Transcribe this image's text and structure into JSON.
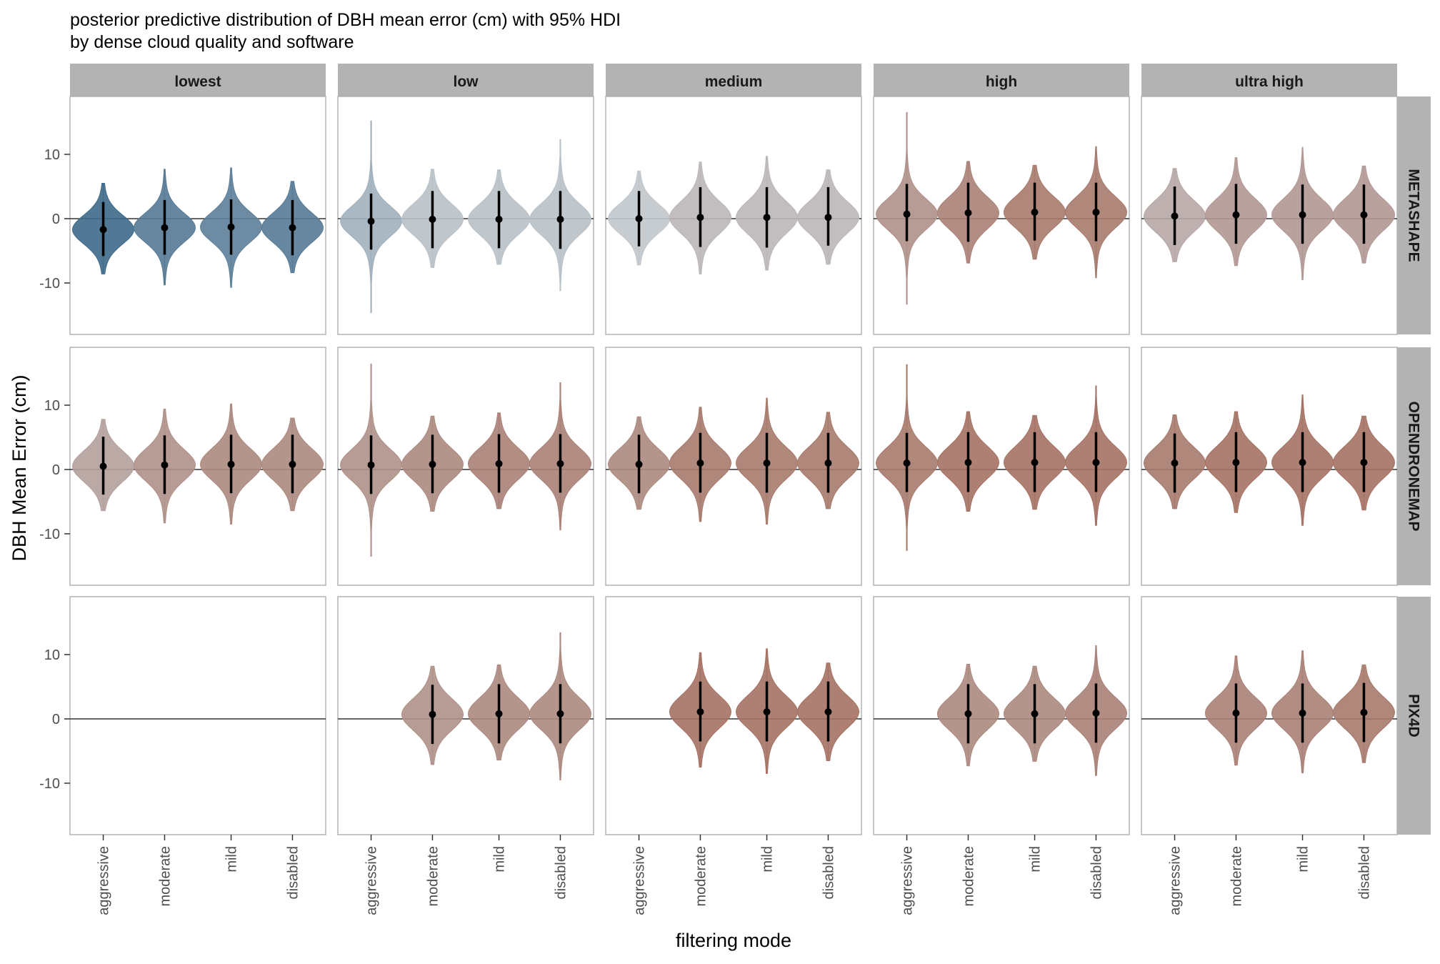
{
  "chart_data": {
    "type": "violin",
    "title": "posterior predictive distribution of DBH mean error (cm) with 95% HDI",
    "subtitle": "by dense cloud quality and software",
    "xlabel": "filtering mode",
    "ylabel": "DBH Mean Error (cm)",
    "ylim": [
      -18,
      19
    ],
    "y_ticks": [
      -10,
      0,
      10
    ],
    "y_tick_labels": [
      "-10",
      "0",
      "10"
    ],
    "reference_line_y": 0,
    "grid": false,
    "legend": "none",
    "columns": [
      "lowest",
      "low",
      "medium",
      "high",
      "ultra high"
    ],
    "rows": [
      "METASHAPE",
      "OPENDRONEMAP",
      "PIX4D"
    ],
    "categories": [
      "aggressive",
      "moderate",
      "mild",
      "disabled"
    ],
    "colors": {
      "point_and_interval": "#000000",
      "strip_fill": "#b3b3b3",
      "panel_border": "#b3b3b3",
      "reference_line": "#333333",
      "blue_extreme": "#3e6a8a",
      "neutral": "#c0c6cb",
      "brown_extreme": "#a57264"
    },
    "panels": [
      {
        "row": "METASHAPE",
        "column": "lowest",
        "series": [
          {
            "category": "aggressive",
            "median": -1.7,
            "hdi": [
              -5.8,
              2.6
            ],
            "min": -8.6,
            "max": 5.5
          },
          {
            "category": "moderate",
            "median": -1.4,
            "hdi": [
              -5.6,
              2.9
            ],
            "min": -10.3,
            "max": 7.7
          },
          {
            "category": "mild",
            "median": -1.3,
            "hdi": [
              -5.6,
              3.0
            ],
            "min": -10.7,
            "max": 7.9
          },
          {
            "category": "disabled",
            "median": -1.4,
            "hdi": [
              -5.7,
              2.9
            ],
            "min": -8.4,
            "max": 5.8
          }
        ]
      },
      {
        "row": "METASHAPE",
        "column": "low",
        "series": [
          {
            "category": "aggressive",
            "median": -0.4,
            "hdi": [
              -4.8,
              3.9
            ],
            "min": -14.6,
            "max": 15.2
          },
          {
            "category": "moderate",
            "median": -0.1,
            "hdi": [
              -4.6,
              4.3
            ],
            "min": -7.6,
            "max": 7.7
          },
          {
            "category": "mild",
            "median": -0.1,
            "hdi": [
              -4.6,
              4.3
            ],
            "min": -7.1,
            "max": 7.6
          },
          {
            "category": "disabled",
            "median": -0.1,
            "hdi": [
              -4.7,
              4.3
            ],
            "min": -11.2,
            "max": 12.3
          }
        ]
      },
      {
        "row": "METASHAPE",
        "column": "medium",
        "series": [
          {
            "category": "aggressive",
            "median": 0.0,
            "hdi": [
              -4.3,
              4.3
            ],
            "min": -7.2,
            "max": 7.4
          },
          {
            "category": "moderate",
            "median": 0.2,
            "hdi": [
              -4.4,
              4.9
            ],
            "min": -8.6,
            "max": 8.8
          },
          {
            "category": "mild",
            "median": 0.2,
            "hdi": [
              -4.5,
              4.9
            ],
            "min": -8.0,
            "max": 9.7
          },
          {
            "category": "disabled",
            "median": 0.2,
            "hdi": [
              -4.2,
              4.9
            ],
            "min": -7.1,
            "max": 7.6
          }
        ]
      },
      {
        "row": "METASHAPE",
        "column": "high",
        "series": [
          {
            "category": "aggressive",
            "median": 0.7,
            "hdi": [
              -3.5,
              5.4
            ],
            "min": -13.3,
            "max": 16.5
          },
          {
            "category": "moderate",
            "median": 0.9,
            "hdi": [
              -3.6,
              5.6
            ],
            "min": -6.9,
            "max": 8.9
          },
          {
            "category": "mild",
            "median": 1.0,
            "hdi": [
              -3.4,
              5.6
            ],
            "min": -6.3,
            "max": 8.3
          },
          {
            "category": "disabled",
            "median": 1.0,
            "hdi": [
              -3.5,
              5.6
            ],
            "min": -9.2,
            "max": 11.2
          }
        ]
      },
      {
        "row": "METASHAPE",
        "column": "ultra high",
        "series": [
          {
            "category": "aggressive",
            "median": 0.4,
            "hdi": [
              -4.1,
              5.0
            ],
            "min": -6.7,
            "max": 7.8
          },
          {
            "category": "moderate",
            "median": 0.6,
            "hdi": [
              -3.9,
              5.4
            ],
            "min": -7.3,
            "max": 9.5
          },
          {
            "category": "mild",
            "median": 0.6,
            "hdi": [
              -3.9,
              5.3
            ],
            "min": -9.5,
            "max": 11.1
          },
          {
            "category": "disabled",
            "median": 0.6,
            "hdi": [
              -3.9,
              5.3
            ],
            "min": -6.9,
            "max": 8.2
          }
        ]
      },
      {
        "row": "OPENDRONEMAP",
        "column": "lowest",
        "series": [
          {
            "category": "aggressive",
            "median": 0.5,
            "hdi": [
              -3.9,
              5.1
            ],
            "min": -6.4,
            "max": 7.8
          },
          {
            "category": "moderate",
            "median": 0.7,
            "hdi": [
              -3.8,
              5.3
            ],
            "min": -8.3,
            "max": 9.4
          },
          {
            "category": "mild",
            "median": 0.8,
            "hdi": [
              -3.7,
              5.4
            ],
            "min": -8.5,
            "max": 10.2
          },
          {
            "category": "disabled",
            "median": 0.8,
            "hdi": [
              -3.7,
              5.4
            ],
            "min": -6.4,
            "max": 8.0
          }
        ]
      },
      {
        "row": "OPENDRONEMAP",
        "column": "low",
        "series": [
          {
            "category": "aggressive",
            "median": 0.7,
            "hdi": [
              -3.8,
              5.3
            ],
            "min": -13.5,
            "max": 16.4
          },
          {
            "category": "moderate",
            "median": 0.8,
            "hdi": [
              -3.7,
              5.4
            ],
            "min": -6.5,
            "max": 8.3
          },
          {
            "category": "mild",
            "median": 0.9,
            "hdi": [
              -3.6,
              5.5
            ],
            "min": -6.1,
            "max": 8.8
          },
          {
            "category": "disabled",
            "median": 0.9,
            "hdi": [
              -3.6,
              5.5
            ],
            "min": -9.4,
            "max": 13.5
          }
        ]
      },
      {
        "row": "OPENDRONEMAP",
        "column": "medium",
        "series": [
          {
            "category": "aggressive",
            "median": 0.8,
            "hdi": [
              -3.7,
              5.4
            ],
            "min": -6.2,
            "max": 8.2
          },
          {
            "category": "moderate",
            "median": 1.0,
            "hdi": [
              -3.6,
              5.7
            ],
            "min": -8.1,
            "max": 9.7
          },
          {
            "category": "mild",
            "median": 1.0,
            "hdi": [
              -3.6,
              5.7
            ],
            "min": -8.5,
            "max": 11.1
          },
          {
            "category": "disabled",
            "median": 1.0,
            "hdi": [
              -3.6,
              5.7
            ],
            "min": -6.1,
            "max": 8.9
          }
        ]
      },
      {
        "row": "OPENDRONEMAP",
        "column": "high",
        "series": [
          {
            "category": "aggressive",
            "median": 1.0,
            "hdi": [
              -3.5,
              5.7
            ],
            "min": -12.6,
            "max": 16.3
          },
          {
            "category": "moderate",
            "median": 1.1,
            "hdi": [
              -3.5,
              5.8
            ],
            "min": -6.5,
            "max": 9.0
          },
          {
            "category": "mild",
            "median": 1.1,
            "hdi": [
              -3.5,
              5.8
            ],
            "min": -6.2,
            "max": 8.4
          },
          {
            "category": "disabled",
            "median": 1.1,
            "hdi": [
              -3.5,
              5.8
            ],
            "min": -8.7,
            "max": 13.0
          }
        ]
      },
      {
        "row": "OPENDRONEMAP",
        "column": "ultra high",
        "series": [
          {
            "category": "aggressive",
            "median": 1.0,
            "hdi": [
              -3.6,
              5.6
            ],
            "min": -6.1,
            "max": 8.5
          },
          {
            "category": "moderate",
            "median": 1.1,
            "hdi": [
              -3.5,
              5.8
            ],
            "min": -6.7,
            "max": 9.0
          },
          {
            "category": "mild",
            "median": 1.1,
            "hdi": [
              -3.5,
              5.8
            ],
            "min": -8.7,
            "max": 11.6
          },
          {
            "category": "disabled",
            "median": 1.1,
            "hdi": [
              -3.5,
              5.8
            ],
            "min": -6.3,
            "max": 8.3
          }
        ]
      },
      {
        "row": "PIX4D",
        "column": "lowest",
        "series": []
      },
      {
        "row": "PIX4D",
        "column": "low",
        "series": [
          {
            "category": "moderate",
            "median": 0.7,
            "hdi": [
              -3.9,
              5.3
            ],
            "min": -7.1,
            "max": 8.2
          },
          {
            "category": "mild",
            "median": 0.8,
            "hdi": [
              -3.8,
              5.4
            ],
            "min": -6.4,
            "max": 8.4
          },
          {
            "category": "disabled",
            "median": 0.8,
            "hdi": [
              -3.8,
              5.4
            ],
            "min": -9.5,
            "max": 13.4
          }
        ]
      },
      {
        "row": "PIX4D",
        "column": "medium",
        "series": [
          {
            "category": "moderate",
            "median": 1.1,
            "hdi": [
              -3.5,
              5.8
            ],
            "min": -7.5,
            "max": 10.3
          },
          {
            "category": "mild",
            "median": 1.1,
            "hdi": [
              -3.5,
              5.8
            ],
            "min": -8.5,
            "max": 10.9
          },
          {
            "category": "disabled",
            "median": 1.1,
            "hdi": [
              -3.5,
              5.8
            ],
            "min": -6.5,
            "max": 8.7
          }
        ]
      },
      {
        "row": "PIX4D",
        "column": "high",
        "series": [
          {
            "category": "moderate",
            "median": 0.8,
            "hdi": [
              -3.8,
              5.4
            ],
            "min": -7.3,
            "max": 8.5
          },
          {
            "category": "mild",
            "median": 0.8,
            "hdi": [
              -3.8,
              5.4
            ],
            "min": -6.6,
            "max": 8.2
          },
          {
            "category": "disabled",
            "median": 0.9,
            "hdi": [
              -3.7,
              5.5
            ],
            "min": -8.8,
            "max": 11.4
          }
        ]
      },
      {
        "row": "PIX4D",
        "column": "ultra high",
        "series": [
          {
            "category": "moderate",
            "median": 0.9,
            "hdi": [
              -3.7,
              5.5
            ],
            "min": -7.2,
            "max": 9.8
          },
          {
            "category": "mild",
            "median": 0.9,
            "hdi": [
              -3.7,
              5.5
            ],
            "min": -8.4,
            "max": 10.6
          },
          {
            "category": "disabled",
            "median": 1.0,
            "hdi": [
              -3.6,
              5.6
            ],
            "min": -6.8,
            "max": 8.4
          }
        ]
      }
    ]
  }
}
